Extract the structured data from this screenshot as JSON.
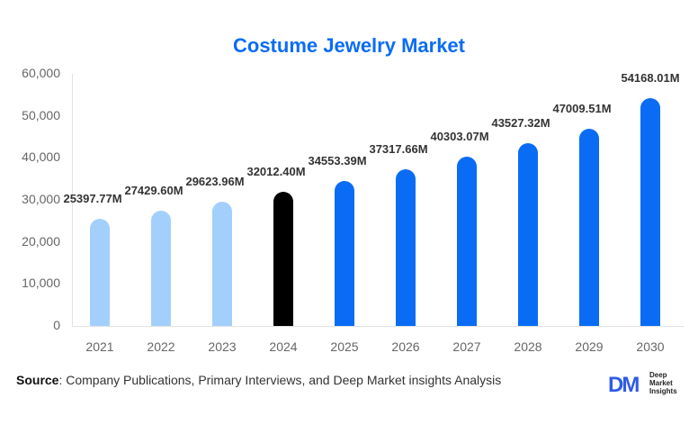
{
  "title": "Costume Jewelry Market",
  "source": {
    "label": "Source",
    "text": ": Company Publications, Primary Interviews, and Deep Market insights Analysis"
  },
  "logo": {
    "mark": "DM",
    "line1": "Deep",
    "line2": "Market",
    "line3": "Insights"
  },
  "colors": {
    "historical": "#a3cffd",
    "base_year": "#000000",
    "forecast": "#0a6cf5",
    "title": "#0a6cf5"
  },
  "chart_data": {
    "type": "bar",
    "title": "Costume Jewelry Market",
    "xlabel": "",
    "ylabel": "",
    "categories": [
      "2021",
      "2022",
      "2023",
      "2024",
      "2025",
      "2026",
      "2027",
      "2028",
      "2029",
      "2030"
    ],
    "values": [
      25397.77,
      27429.6,
      29623.96,
      32012.4,
      34553.39,
      37317.66,
      40303.07,
      43527.32,
      47009.51,
      54168.01
    ],
    "data_labels": [
      "25397.77M",
      "27429.60M",
      "29623.96M",
      "32012.40M",
      "34553.39M",
      "37317.66M",
      "40303.07M",
      "43527.32M",
      "47009.51M",
      "54168.01M"
    ],
    "bar_colors": [
      "#a3cffd",
      "#a3cffd",
      "#a3cffd",
      "#000000",
      "#0a6cf5",
      "#0a6cf5",
      "#0a6cf5",
      "#0a6cf5",
      "#0a6cf5",
      "#0a6cf5"
    ],
    "yticks": [
      "0",
      "10,000",
      "20,000",
      "30,000",
      "40,000",
      "50,000",
      "60,000"
    ],
    "ylim": [
      0,
      60000
    ],
    "grid": false,
    "legend": null
  }
}
